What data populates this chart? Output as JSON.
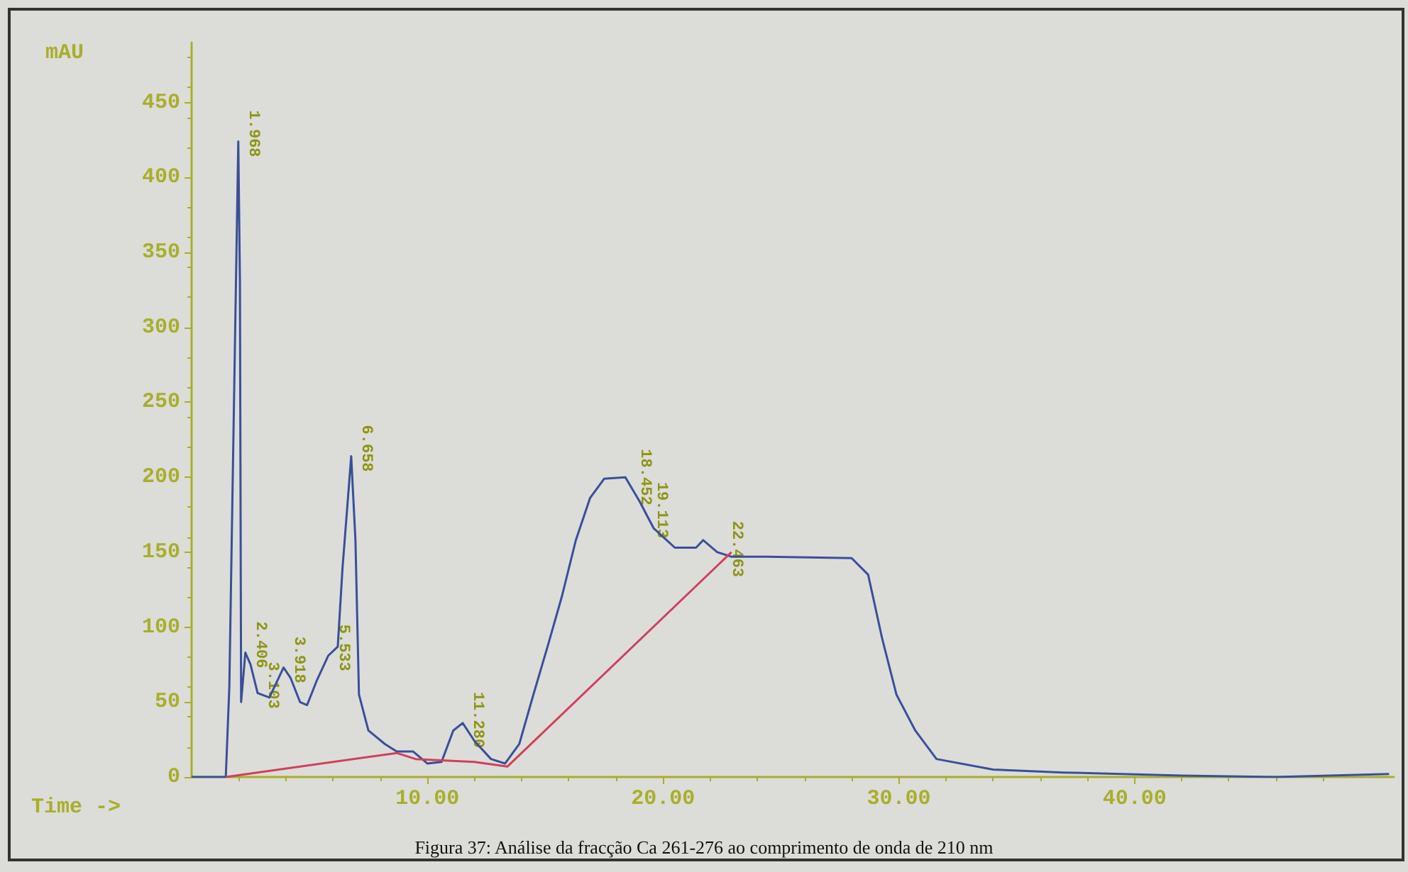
{
  "chart_data": {
    "type": "line",
    "title": "Figura 37: Análise da fracção Ca 261-276 ao comprimento de onda de 210 nm",
    "xlabel": "Time ->",
    "ylabel": "mAU",
    "xlim": [
      0,
      51
    ],
    "xticks": [
      {
        "value": 10,
        "label": "10.00"
      },
      {
        "value": 20,
        "label": "20.00"
      },
      {
        "value": 30,
        "label": "30.00"
      },
      {
        "value": 40,
        "label": "40.00"
      }
    ],
    "ylim": [
      0,
      490
    ],
    "yticks": [
      0,
      50,
      100,
      150,
      200,
      250,
      300,
      350,
      400,
      450
    ],
    "grid": false,
    "marker": "none",
    "line_style": "solid",
    "series": [
      {
        "color": "#3a4f9a",
        "x": [
          0,
          1.45,
          1.6,
          1.85,
          1.98,
          2.05,
          2.1,
          2.28,
          2.5,
          2.8,
          3.3,
          3.9,
          4.2,
          4.6,
          4.9,
          5.3,
          5.8,
          6.2,
          6.4,
          6.77,
          6.95,
          7.1,
          7.5,
          8.2,
          8.7,
          9.4,
          10,
          10.6,
          11.1,
          11.5,
          12.0,
          12.7,
          13.3,
          13.9,
          14.5,
          15.1,
          15.7,
          16.3,
          16.9,
          17.5,
          18.4,
          19.0,
          19.6,
          20.5,
          21.4,
          21.7,
          22.3,
          22.9,
          24.4,
          28.0,
          28.7,
          29.3,
          29.9,
          30.7,
          31.6,
          34,
          37,
          42,
          46,
          50.8
        ],
        "values": [
          0,
          0,
          60,
          300,
          424,
          330,
          50,
          83,
          75,
          56,
          53,
          73,
          66,
          50,
          48,
          64,
          81,
          87,
          139,
          214,
          158,
          55,
          31,
          22,
          17,
          17,
          9,
          10,
          31,
          36,
          24,
          12,
          9,
          22,
          55,
          87,
          120,
          158,
          186,
          199,
          200,
          184,
          166,
          153,
          153,
          158,
          150,
          147,
          147,
          146,
          135,
          92,
          55,
          31,
          12,
          5,
          3,
          1,
          0,
          2
        ]
      },
      {
        "color": "#d0405a",
        "x": [
          1.45,
          8.7,
          9.5,
          12,
          13.4,
          22.9
        ],
        "values": [
          0,
          16,
          12,
          10,
          7,
          150
        ]
      }
    ],
    "annotations": [
      {
        "text": "1.968",
        "x": 1.98,
        "y": 424
      },
      {
        "text": "2.406",
        "x": 2.28,
        "y": 83
      },
      {
        "text": "3.103",
        "x": 2.8,
        "y": 56
      },
      {
        "text": "3.918",
        "x": 3.9,
        "y": 73
      },
      {
        "text": "5.533",
        "x": 5.8,
        "y": 81
      },
      {
        "text": "6.658",
        "x": 6.77,
        "y": 214
      },
      {
        "text": "11.280",
        "x": 11.5,
        "y": 36
      },
      {
        "text": "18.452",
        "x": 18.6,
        "y": 198
      },
      {
        "text": "19.113",
        "x": 19.3,
        "y": 176
      },
      {
        "text": "22.463",
        "x": 22.5,
        "y": 150
      }
    ]
  }
}
